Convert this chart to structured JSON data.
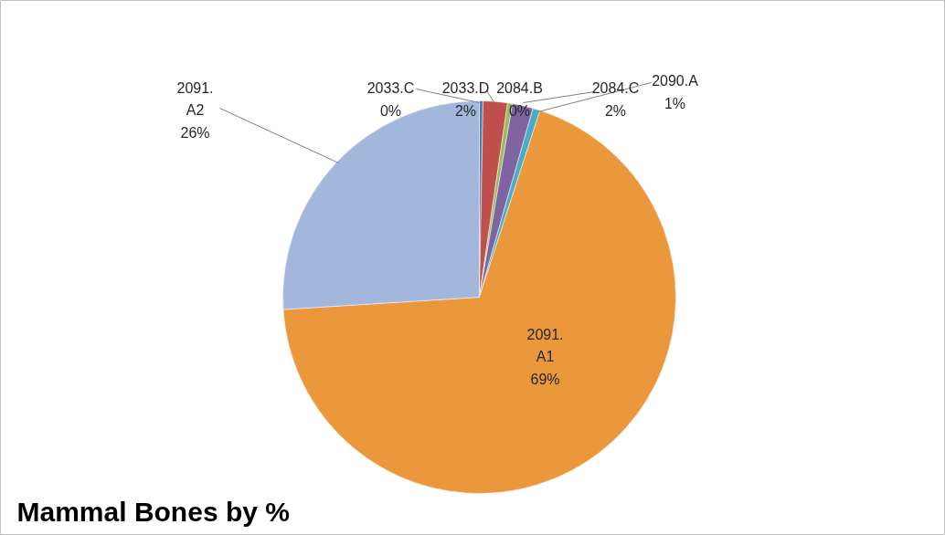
{
  "chart_data": {
    "type": "pie",
    "title": "Mammal Bones by %",
    "categories": [
      "2033.C",
      "2033.D",
      "2084.B",
      "2084.C",
      "2090.A",
      "2091.A1",
      "2091.A2"
    ],
    "values": [
      0.3,
      2.0,
      0.4,
      1.7,
      0.6,
      69.0,
      26.0
    ],
    "value_labels": [
      "0%",
      "2%",
      "0%",
      "2%",
      "1%",
      "69%",
      "26%"
    ],
    "colors": [
      "#4a7ebb",
      "#c0504d",
      "#9bbb59",
      "#8064a2",
      "#4bacc6",
      "#eb973c",
      "#a3b6dc"
    ],
    "legend": false
  }
}
